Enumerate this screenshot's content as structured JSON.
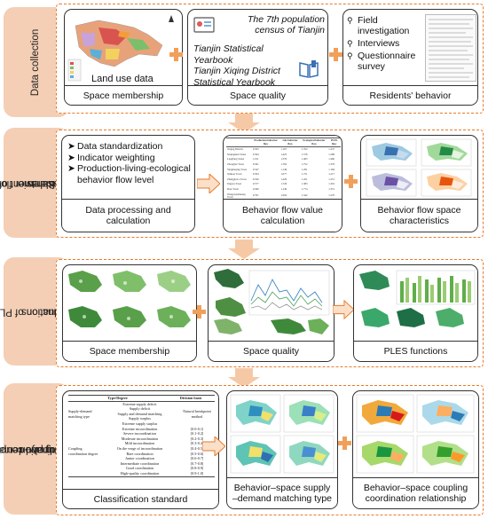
{
  "stages": [
    {
      "label": "Data collection"
    },
    {
      "label_lines": [
        "Behavior flow",
        "measurement of",
        "residents"
      ]
    },
    {
      "label_lines": [
        "Evaluation of PLES",
        "functions"
      ]
    },
    {
      "label_lines": [
        "Supply–demand",
        "matching and coupling",
        "coordination"
      ]
    }
  ],
  "row1": {
    "land_use_label": "Land use data",
    "space_membership": "Space membership",
    "census": "The 7th population census of Tianjin",
    "yearbooks": [
      "Tianjin Statistical Yearbook",
      "Tianjin Xiqing District",
      "Statistical Yearbook"
    ],
    "space_quality": "Space quality",
    "survey_items": [
      "Field investigation",
      "Interviews",
      "Questionnaire survey"
    ],
    "residents_behavior": "Residents' behavior"
  },
  "row2": {
    "steps": [
      "Data standardization",
      "Indicator weighting",
      "Production-living-ecological behavior flow level"
    ],
    "data_processing_lines": [
      "Data processing and",
      "calculation"
    ],
    "behavior_value_lines": [
      "Behavior flow value",
      "calculation"
    ],
    "behavior_space_lines": [
      "Behavior flow space",
      "characteristics"
    ],
    "table_headers": [
      "",
      "Production behavior flow",
      "Life behavior flow",
      "Ecological behavior flow",
      "PLES flow"
    ],
    "table_rows": [
      [
        "Xiqing District",
        "0.505",
        "1.167",
        "1.352",
        "1.237"
      ],
      [
        "Xiqingmen Street",
        "0.594",
        "1.425",
        "1.576",
        "1.289"
      ],
      [
        "Langfang Street",
        "1.011",
        "1.376",
        "1.465",
        "1.460"
      ],
      [
        "Zhongbei Town",
        "0.561",
        "1.762",
        "1.752",
        "1.379"
      ],
      [
        "Yangliuqing Town",
        "0.547",
        "1.146",
        "1.291",
        "1.184"
      ],
      [
        "Xinkou Town",
        "0.504",
        "1.077",
        "1.751",
        "1.217"
      ],
      [
        "Zhangjiawo Town",
        "0.526",
        "1.429",
        "1.451",
        "1.251"
      ],
      [
        "Jingwu Town",
        "0.577",
        "1.726",
        "1.383",
        "1.316"
      ],
      [
        "Dasi Town",
        "0.566",
        "1.149",
        "1.774",
        "1.351"
      ],
      [
        "Wangwenzhuang Town",
        "0.791",
        "1.004",
        "1.342",
        "1.270"
      ]
    ]
  },
  "row3": {
    "space_membership": "Space membership",
    "space_quality": "Space quality",
    "ples_functions": "PLES functions"
  },
  "row4": {
    "classification": "Classification standard",
    "matching_lines": [
      "Behavior–space supply",
      "–demand matching type"
    ],
    "coupling_lines": [
      "Behavior–space coupling",
      "coordination relationship"
    ],
    "cls_header": [
      "Type/Degree",
      "Division basis"
    ],
    "cls_group1": "Supply-demand matching type",
    "cls_group1_rows": [
      "Extreme supply deficit",
      "Supply deficit",
      "Supply and demand matching",
      "Supply surplus",
      "Extreme supply surplus"
    ],
    "cls_group1_basis": "Natural breakpoint method",
    "cls_group2": "Coupling coordination degree",
    "cls_group2_rows": [
      [
        "Extreme incoordination",
        "[0.0-0.1]"
      ],
      [
        "Severe incoordination",
        "[0.1-0.2]"
      ],
      [
        "Moderate incoordination",
        "[0.2-0.3]"
      ],
      [
        "Mild incoordination",
        "[0.3-0.4]"
      ],
      [
        "On the verge of incoordination",
        "[0.4-0.5]"
      ],
      [
        "Bare coordination",
        "[0.5-0.6]"
      ],
      [
        "Junior coordination",
        "[0.6-0.7]"
      ],
      [
        "Intermediate coordination",
        "[0.7-0.8]"
      ],
      [
        "Good coordination",
        "[0.8-0.9]"
      ],
      [
        "High-quality coordination",
        "[0.9-1.0]"
      ]
    ]
  },
  "colors": {
    "accent": "#e87a2a",
    "stage_fill": "#f4cfb5",
    "arrow": "#f6c9a6",
    "plus": "#f0a05a"
  }
}
